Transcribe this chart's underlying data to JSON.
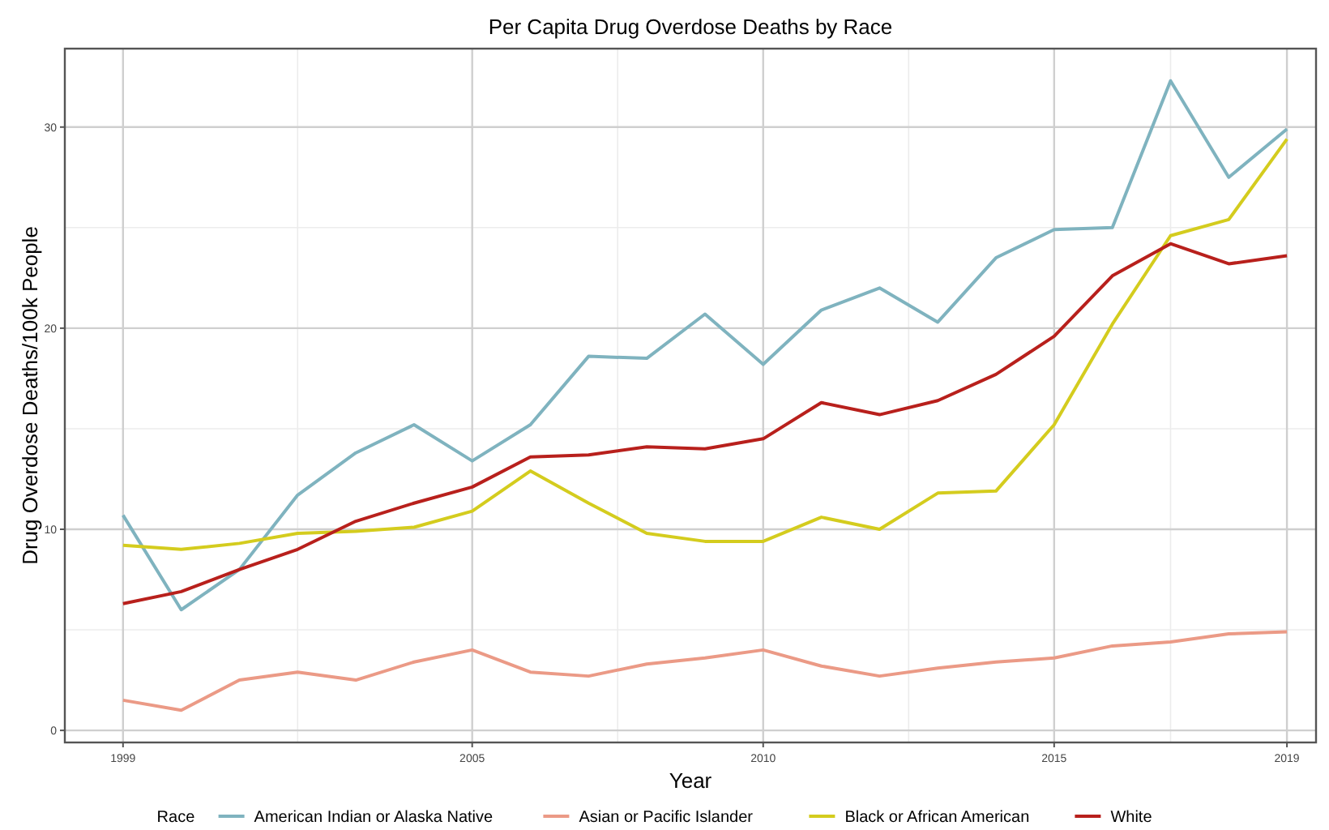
{
  "chart_data": {
    "type": "line",
    "title": "Per Capita Drug Overdose Deaths by Race",
    "xlabel": "Year",
    "ylabel": "Drug Overdose Deaths/100k People",
    "legend_title": "Race",
    "legend": "bottom",
    "grid": true,
    "x": [
      1999,
      2000,
      2001,
      2002,
      2003,
      2004,
      2005,
      2006,
      2007,
      2008,
      2009,
      2010,
      2011,
      2012,
      2013,
      2014,
      2015,
      2016,
      2017,
      2018,
      2019
    ],
    "xlim": [
      1998,
      2019.5
    ],
    "xticks": [
      1999,
      2005,
      2010,
      2015,
      2019
    ],
    "ylim": [
      -0.6,
      33.9
    ],
    "yticks": [
      0,
      10,
      20,
      30
    ],
    "series": [
      {
        "name": "American Indian or Alaska Native",
        "color": "#7fb3bf",
        "values": [
          10.7,
          6.0,
          8.0,
          11.7,
          13.8,
          15.2,
          13.4,
          15.2,
          18.6,
          18.5,
          20.7,
          18.2,
          20.9,
          22.0,
          20.3,
          23.5,
          24.9,
          25.0,
          32.3,
          27.5,
          29.9
        ]
      },
      {
        "name": "Asian or Pacific Islander",
        "color": "#eb9a86",
        "values": [
          1.5,
          1.0,
          2.5,
          2.9,
          2.5,
          3.4,
          4.0,
          2.9,
          2.7,
          3.3,
          3.6,
          4.0,
          3.2,
          2.7,
          3.1,
          3.4,
          3.6,
          4.2,
          4.4,
          4.8,
          4.9
        ]
      },
      {
        "name": "Black or African American",
        "color": "#d4cc1e",
        "values": [
          9.2,
          9.0,
          9.3,
          9.8,
          9.9,
          10.1,
          10.9,
          12.9,
          11.3,
          9.8,
          9.4,
          9.4,
          10.6,
          10.0,
          11.8,
          11.9,
          15.2,
          20.2,
          24.6,
          25.4,
          29.4
        ]
      },
      {
        "name": "White",
        "color": "#b8201c",
        "values": [
          6.3,
          6.9,
          8.0,
          9.0,
          10.4,
          11.3,
          12.1,
          13.6,
          13.7,
          14.1,
          14.0,
          14.5,
          16.3,
          15.7,
          16.4,
          17.7,
          19.6,
          22.6,
          24.2,
          23.2,
          23.6
        ]
      }
    ]
  }
}
